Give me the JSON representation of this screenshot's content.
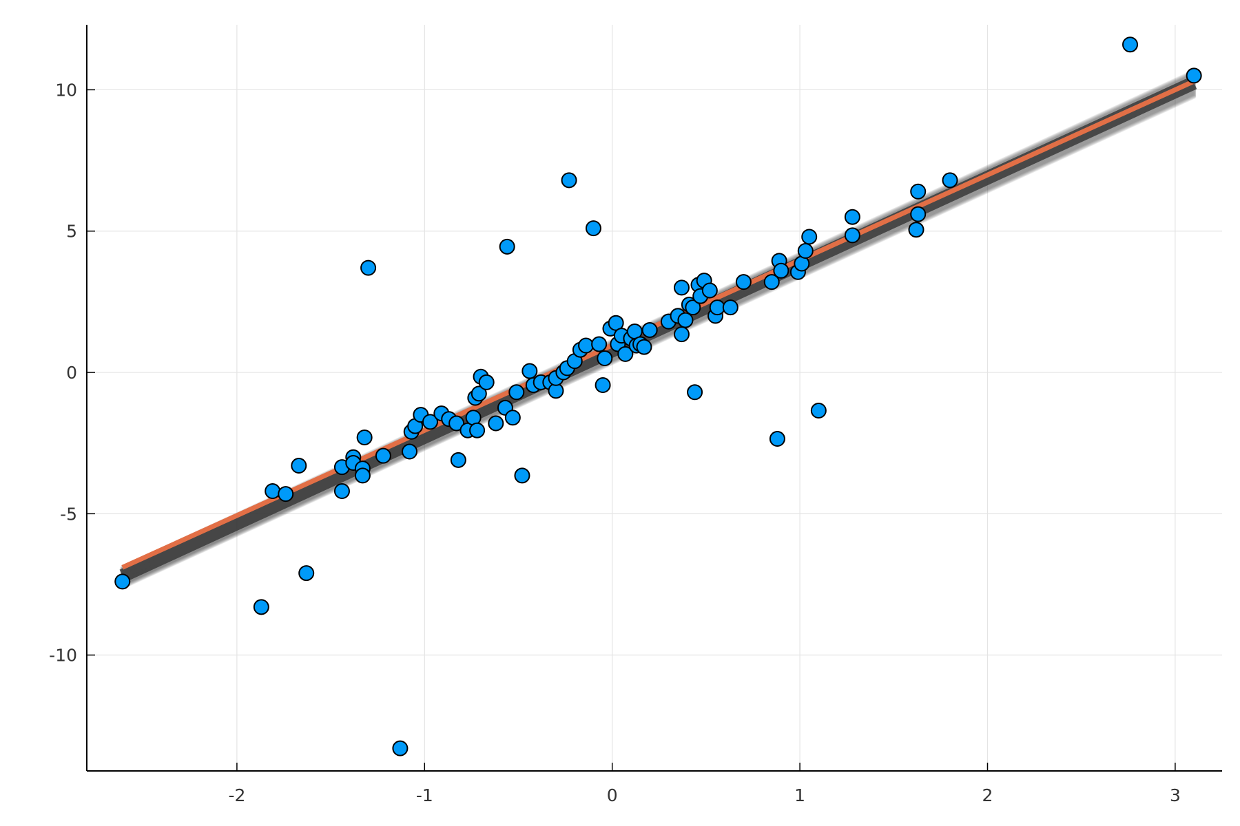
{
  "chart_data": {
    "type": "scatter",
    "title": "",
    "xlabel": "",
    "ylabel": "",
    "xlim": [
      -2.8,
      3.25
    ],
    "ylim": [
      -14.1,
      12.3
    ],
    "grid": true,
    "legend": "none",
    "x_ticks": [
      {
        "value": -2,
        "label": "-2"
      },
      {
        "value": -1,
        "label": "-1"
      },
      {
        "value": 0,
        "label": "0"
      },
      {
        "value": 1,
        "label": "1"
      },
      {
        "value": 2,
        "label": "2"
      },
      {
        "value": 3,
        "label": "3"
      }
    ],
    "y_ticks": [
      {
        "value": -10,
        "label": "-10"
      },
      {
        "value": -5,
        "label": "-5"
      },
      {
        "value": 0,
        "label": "0"
      },
      {
        "value": 5,
        "label": "5"
      },
      {
        "value": 10,
        "label": "10"
      }
    ],
    "points": [
      [
        -2.61,
        -7.4
      ],
      [
        -1.87,
        -8.3
      ],
      [
        -1.81,
        -4.2
      ],
      [
        -1.74,
        -4.3
      ],
      [
        -1.67,
        -3.3
      ],
      [
        -1.63,
        -7.1
      ],
      [
        -1.44,
        -4.2
      ],
      [
        -1.44,
        -3.35
      ],
      [
        -1.38,
        -3.0
      ],
      [
        -1.38,
        -3.2
      ],
      [
        -1.33,
        -3.4
      ],
      [
        -1.33,
        -3.65
      ],
      [
        -1.32,
        -2.3
      ],
      [
        -1.3,
        3.7
      ],
      [
        -1.22,
        -2.95
      ],
      [
        -1.13,
        -13.3
      ],
      [
        -1.08,
        -2.8
      ],
      [
        -1.07,
        -2.1
      ],
      [
        -1.05,
        -1.9
      ],
      [
        -1.02,
        -1.5
      ],
      [
        -0.97,
        -1.75
      ],
      [
        -0.91,
        -1.45
      ],
      [
        -0.87,
        -1.65
      ],
      [
        -0.83,
        -1.8
      ],
      [
        -0.82,
        -3.1
      ],
      [
        -0.77,
        -2.05
      ],
      [
        -0.74,
        -1.6
      ],
      [
        -0.73,
        -0.9
      ],
      [
        -0.72,
        -2.05
      ],
      [
        -0.71,
        -0.75
      ],
      [
        -0.7,
        -0.15
      ],
      [
        -0.67,
        -0.35
      ],
      [
        -0.62,
        -1.8
      ],
      [
        -0.57,
        -1.25
      ],
      [
        -0.56,
        4.45
      ],
      [
        -0.53,
        -1.6
      ],
      [
        -0.51,
        -0.7
      ],
      [
        -0.48,
        -3.65
      ],
      [
        -0.44,
        0.05
      ],
      [
        -0.42,
        -0.45
      ],
      [
        -0.38,
        -0.35
      ],
      [
        -0.33,
        -0.35
      ],
      [
        -0.3,
        -0.65
      ],
      [
        -0.3,
        -0.2
      ],
      [
        -0.26,
        0.0
      ],
      [
        -0.24,
        0.15
      ],
      [
        -0.23,
        6.8
      ],
      [
        -0.2,
        0.4
      ],
      [
        -0.17,
        0.8
      ],
      [
        -0.14,
        0.95
      ],
      [
        -0.1,
        5.1
      ],
      [
        -0.07,
        1.0
      ],
      [
        -0.05,
        -0.45
      ],
      [
        -0.04,
        0.5
      ],
      [
        -0.01,
        1.55
      ],
      [
        0.02,
        1.75
      ],
      [
        0.03,
        1.0
      ],
      [
        0.05,
        1.3
      ],
      [
        0.07,
        0.65
      ],
      [
        0.1,
        1.2
      ],
      [
        0.12,
        1.45
      ],
      [
        0.13,
        0.95
      ],
      [
        0.15,
        1.0
      ],
      [
        0.17,
        0.9
      ],
      [
        0.2,
        1.5
      ],
      [
        0.3,
        1.8
      ],
      [
        0.35,
        2.0
      ],
      [
        0.37,
        3.0
      ],
      [
        0.37,
        1.35
      ],
      [
        0.39,
        1.85
      ],
      [
        0.41,
        2.4
      ],
      [
        0.43,
        2.3
      ],
      [
        0.44,
        -0.7
      ],
      [
        0.46,
        3.1
      ],
      [
        0.47,
        2.7
      ],
      [
        0.49,
        3.25
      ],
      [
        0.52,
        2.9
      ],
      [
        0.55,
        2.0
      ],
      [
        0.56,
        2.3
      ],
      [
        0.63,
        2.3
      ],
      [
        0.7,
        3.2
      ],
      [
        0.85,
        3.2
      ],
      [
        0.88,
        -2.35
      ],
      [
        0.89,
        3.95
      ],
      [
        0.9,
        3.6
      ],
      [
        0.99,
        3.55
      ],
      [
        1.01,
        3.85
      ],
      [
        1.03,
        4.3
      ],
      [
        1.05,
        4.8
      ],
      [
        1.1,
        -1.35
      ],
      [
        1.28,
        5.5
      ],
      [
        1.28,
        4.85
      ],
      [
        1.62,
        5.05
      ],
      [
        1.63,
        5.6
      ],
      [
        1.63,
        6.4
      ],
      [
        1.8,
        6.8
      ],
      [
        2.76,
        11.6
      ],
      [
        3.1,
        10.5
      ]
    ],
    "fit": {
      "x": [
        -2.61,
        3.1
      ],
      "y": [
        -6.9,
        10.3
      ],
      "color": "#e26f46",
      "band_color": "#3a3a3a"
    },
    "point_color": "#009af9",
    "point_edge_color": "#000000"
  }
}
